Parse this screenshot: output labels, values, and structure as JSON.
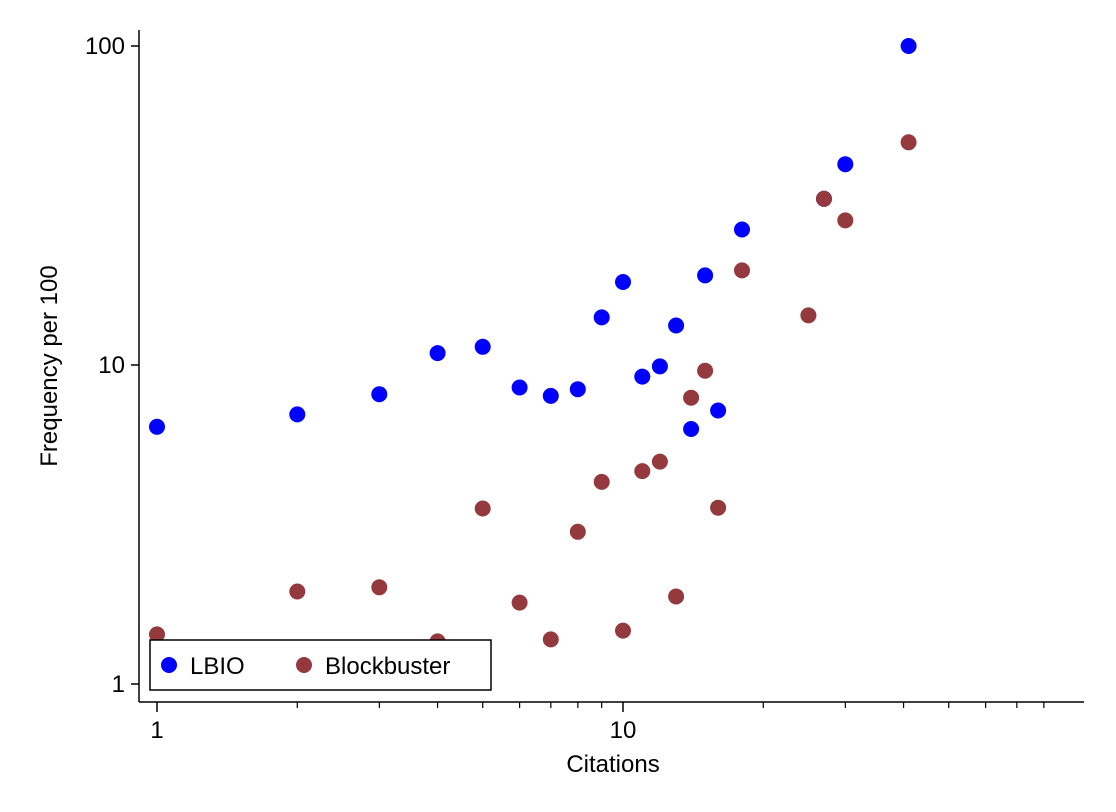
{
  "chart_data": {
    "type": "scatter",
    "title": "",
    "xlabel": "Citations",
    "ylabel": "Frequency per 100",
    "x_scale": "log",
    "y_scale": "log",
    "xlim": [
      0.92,
      80
    ],
    "ylim": [
      0.92,
      113
    ],
    "x_ticks": [
      1,
      10
    ],
    "x_minor_ticks": [
      2,
      3,
      4,
      5,
      6,
      7,
      8,
      9,
      20,
      30,
      40,
      50,
      60,
      70,
      80
    ],
    "y_ticks": [
      1,
      10,
      100
    ],
    "y_tick_labels": [
      "1",
      "10",
      "100"
    ],
    "x_tick_labels": [
      "1",
      "10"
    ],
    "grid": false,
    "legend_position": "bottom-left",
    "series": [
      {
        "name": "LBIO",
        "color": "#0000ff",
        "x": [
          1,
          2,
          3,
          4,
          5,
          6,
          7,
          8,
          9,
          10,
          11,
          12,
          13,
          14,
          15,
          16,
          18,
          27,
          30,
          41
        ],
        "y": [
          6.4,
          7.0,
          8.1,
          10.9,
          11.4,
          8.5,
          8.0,
          8.4,
          14.1,
          18.2,
          9.2,
          9.9,
          13.3,
          6.3,
          19.1,
          7.2,
          26.6,
          33.2,
          42.6,
          100
        ]
      },
      {
        "name": "Blockbuster",
        "color": "#943a3f",
        "x": [
          1,
          2,
          3,
          4,
          5,
          6,
          7,
          8,
          9,
          10,
          11,
          12,
          13,
          14,
          15,
          16,
          18,
          25,
          27,
          30,
          41
        ],
        "y": [
          1.43,
          1.95,
          2.01,
          1.36,
          3.55,
          1.8,
          1.38,
          3.0,
          4.3,
          1.47,
          4.65,
          4.98,
          1.88,
          7.9,
          9.6,
          3.57,
          19.8,
          14.3,
          33.2,
          28.4,
          49.9
        ]
      }
    ]
  }
}
